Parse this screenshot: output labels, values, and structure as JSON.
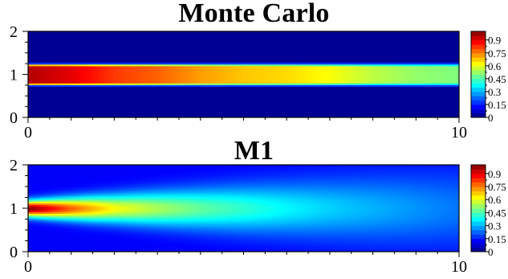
{
  "chart_data": [
    {
      "type": "heatmap",
      "title": "Monte Carlo",
      "xlabel": "",
      "ylabel": "",
      "xlim": [
        0,
        10
      ],
      "ylim": [
        0,
        2
      ],
      "x_ticks": [
        "0",
        "10"
      ],
      "y_ticks": [
        "0",
        "1",
        "2"
      ],
      "colorbar": {
        "min": 0,
        "max": 1,
        "ticks": [
          "0",
          "0.15",
          "0.3",
          "0.45",
          "0.6",
          "0.75",
          "0.9"
        ]
      },
      "colormap": "jet",
      "field": {
        "description": "beam confined to band y 0.75–1.25, background 0",
        "band_y": [
          0.75,
          1.25
        ],
        "x": [
          0,
          1,
          2,
          3,
          4,
          5,
          6,
          7,
          8,
          9,
          10
        ],
        "values_along_band": [
          0.95,
          0.9,
          0.82,
          0.78,
          0.72,
          0.68,
          0.66,
          0.62,
          0.56,
          0.52,
          0.5
        ],
        "background": 0.02
      }
    },
    {
      "type": "heatmap",
      "title": "M1",
      "xlabel": "",
      "ylabel": "",
      "xlim": [
        0,
        10
      ],
      "ylim": [
        0,
        2
      ],
      "x_ticks": [
        "0",
        "10"
      ],
      "y_ticks": [
        "0",
        "1",
        "2"
      ],
      "colorbar": {
        "min": 0,
        "max": 1,
        "ticks": [
          "0",
          "0.15",
          "0.3",
          "0.45",
          "0.6",
          "0.75",
          "0.9"
        ]
      },
      "colormap": "jet",
      "field": {
        "description": "elliptical spreading from source at x=0, y=1",
        "source": [
          0,
          1
        ],
        "centerline_x": [
          0,
          1,
          2,
          3,
          4,
          5,
          6,
          7,
          8,
          9,
          10
        ],
        "centerline_values": [
          1.0,
          0.78,
          0.62,
          0.54,
          0.47,
          0.42,
          0.37,
          0.33,
          0.3,
          0.27,
          0.24
        ],
        "edge_value": 0.12
      }
    }
  ],
  "colors": {
    "background": "#ffffff",
    "axis": "#000000"
  }
}
